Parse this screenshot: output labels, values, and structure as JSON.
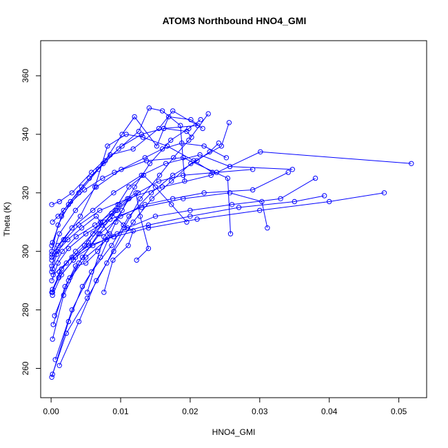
{
  "chart_data": {
    "type": "line",
    "title": "ATOM3 Northbound HNO4_GMI",
    "xlabel": "HNO4_GMI",
    "ylabel": "Theta (K)",
    "xlim": [
      -0.0015,
      0.054
    ],
    "ylim": [
      250,
      372
    ],
    "x_ticks": [
      0.0,
      0.01,
      0.02,
      0.03,
      0.04,
      0.05
    ],
    "x_tick_labels": [
      "0.00",
      "0.01",
      "0.02",
      "0.03",
      "0.04",
      "0.05"
    ],
    "y_ticks": [
      260,
      280,
      300,
      320,
      340,
      360
    ],
    "y_tick_labels": [
      "260",
      "280",
      "300",
      "320",
      "340",
      "360"
    ],
    "series_color": "#0000ff",
    "marker": "open-circle",
    "grid": false,
    "series": [
      {
        "x": [
          0.0001,
          0.0025,
          0.0045,
          0.0071,
          0.0093,
          0.012,
          0.0142,
          0.0172,
          0.0198,
          0.0215
        ],
        "y": [
          257,
          276,
          288,
          298,
          310,
          322,
          330,
          338,
          342,
          345
        ]
      },
      {
        "x": [
          0.0002,
          0.0022,
          0.0052,
          0.008,
          0.0105,
          0.0128,
          0.0156,
          0.0176,
          0.0198,
          0.0226
        ],
        "y": [
          258,
          272,
          284,
          296,
          308,
          318,
          326,
          332,
          338,
          347
        ]
      },
      {
        "x": [
          0.0012,
          0.004,
          0.0065,
          0.009,
          0.0118,
          0.0145,
          0.0173,
          0.0201,
          0.0245,
          0.0256
        ],
        "y": [
          261,
          276,
          290,
          300,
          310,
          318,
          324,
          330,
          336,
          344
        ]
      },
      {
        "x": [
          0.0006,
          0.003,
          0.0058,
          0.0087,
          0.0112,
          0.0144,
          0.0175,
          0.021,
          0.0228,
          0.0241
        ],
        "y": [
          263,
          280,
          293,
          302,
          312,
          320,
          326,
          331,
          334,
          337
        ]
      },
      {
        "x": [
          0.0002,
          0.0018,
          0.004,
          0.0068,
          0.0095,
          0.0125,
          0.0155,
          0.019,
          0.0238,
          0.029
        ],
        "y": [
          270,
          285,
          296,
          306,
          314,
          320,
          324,
          326,
          327,
          328
        ]
      },
      {
        "x": [
          0.0003,
          0.002,
          0.0045,
          0.007,
          0.01,
          0.0135,
          0.0175,
          0.022,
          0.029,
          0.0341
        ],
        "y": [
          275,
          288,
          298,
          306,
          312,
          316,
          318,
          320,
          321,
          327
        ]
      },
      {
        "x": [
          0.0005,
          0.0025,
          0.005,
          0.008,
          0.011,
          0.015,
          0.02,
          0.026,
          0.033,
          0.038
        ],
        "y": [
          278,
          290,
          298,
          304,
          308,
          312,
          314,
          316,
          318,
          325
        ]
      },
      {
        "x": [
          0.0002,
          0.0015,
          0.0035,
          0.006,
          0.0095,
          0.014,
          0.02,
          0.027,
          0.035,
          0.0393
        ],
        "y": [
          285,
          292,
          298,
          302,
          306,
          309,
          312,
          315,
          317,
          319
        ]
      },
      {
        "x": [
          0.0002,
          0.0012,
          0.003,
          0.0055,
          0.009,
          0.014,
          0.021,
          0.03,
          0.04,
          0.0479
        ],
        "y": [
          286,
          293,
          298,
          302,
          305,
          308,
          311,
          314,
          317,
          320
        ]
      },
      {
        "x": [
          0.0001,
          0.001,
          0.0025,
          0.005,
          0.0085,
          0.013,
          0.019,
          0.0257,
          0.0303,
          0.0311
        ],
        "y": [
          290,
          296,
          301,
          306,
          311,
          315,
          318,
          320,
          317,
          308
        ]
      },
      {
        "x": [
          0.0001,
          0.0008,
          0.002,
          0.004,
          0.007,
          0.011,
          0.016,
          0.023,
          0.0301,
          0.0518
        ],
        "y": [
          293,
          299,
          304,
          309,
          314,
          318,
          322,
          326,
          334,
          330
        ]
      },
      {
        "x": [
          0.0001,
          0.001,
          0.003,
          0.006,
          0.009,
          0.013,
          0.0165,
          0.0214,
          0.0257,
          0.0347
        ],
        "y": [
          295,
          302,
          308,
          314,
          320,
          326,
          330,
          333,
          329,
          328
        ]
      },
      {
        "x": [
          0.0001,
          0.0012,
          0.0035,
          0.0065,
          0.0101,
          0.0135,
          0.016,
          0.0188,
          0.022,
          0.0252
        ],
        "y": [
          298,
          306,
          314,
          322,
          328,
          332,
          335,
          337,
          336,
          332
        ]
      },
      {
        "x": [
          0.0001,
          0.001,
          0.0028,
          0.0055,
          0.0078,
          0.0102,
          0.013,
          0.0162,
          0.0195,
          0.0202
        ],
        "y": [
          300,
          309,
          317,
          325,
          331,
          336,
          340,
          342,
          341,
          339
        ]
      },
      {
        "x": [
          0.0001,
          0.0015,
          0.004,
          0.0068,
          0.0097,
          0.0126,
          0.0141,
          0.016,
          0.0186,
          0.0192
        ],
        "y": [
          302,
          312,
          320,
          328,
          335,
          341,
          349,
          348,
          343,
          324
        ]
      },
      {
        "x": [
          0.0002,
          0.0018,
          0.0044,
          0.0075,
          0.0102,
          0.012,
          0.0152,
          0.0169,
          0.0201,
          0.0218
        ],
        "y": [
          303,
          314,
          322,
          330,
          340,
          346,
          336,
          346,
          345,
          342
        ]
      },
      {
        "x": [
          0.0001,
          0.0012,
          0.003,
          0.0058,
          0.0085,
          0.0118,
          0.0155,
          0.0175,
          0.0211,
          0.0162
        ],
        "y": [
          316,
          317,
          320,
          327,
          333,
          335,
          342,
          348,
          343,
          342
        ]
      },
      {
        "x": [
          0.0002,
          0.001,
          0.0025,
          0.0048,
          0.0074,
          0.0091,
          0.0137,
          0.019,
          0.0254,
          0.0258
        ],
        "y": [
          310,
          312,
          316,
          321,
          325,
          327,
          331,
          332,
          325,
          306
        ]
      },
      {
        "x": [
          0.0001,
          0.0018,
          0.0042,
          0.0063,
          0.0081,
          0.0108,
          0.0132,
          0.0167,
          0.0205,
          0.0232
        ],
        "y": [
          299,
          304,
          312,
          322,
          336,
          340,
          339,
          336,
          331,
          327
        ]
      },
      {
        "x": [
          0.0003,
          0.0022,
          0.0048,
          0.0071,
          0.0096,
          0.0112,
          0.0133,
          0.015,
          0.0173,
          0.0195
        ],
        "y": [
          292,
          296,
          302,
          310,
          316,
          322,
          326,
          322,
          316,
          310
        ]
      },
      {
        "x": [
          0.0002,
          0.0015,
          0.0035,
          0.006,
          0.0077,
          0.0098,
          0.0122,
          0.0128,
          0.014,
          0.0123
        ],
        "y": [
          287,
          294,
          300,
          306,
          310,
          316,
          320,
          312,
          301,
          297
        ]
      },
      {
        "x": [
          0.0001,
          0.0011,
          0.0032,
          0.0054,
          0.0073,
          0.0093,
          0.0112,
          0.0102,
          0.0076,
          0.0052
        ],
        "y": [
          286,
          291,
          297,
          303,
          309,
          314,
          318,
          314,
          305,
          286
        ]
      },
      {
        "x": [
          0.0001,
          0.0009,
          0.0024,
          0.0044,
          0.0065,
          0.0084,
          0.0067,
          0.005,
          0.0035,
          0.0027
        ],
        "y": [
          297,
          300,
          304,
          308,
          312,
          306,
          300,
          296,
          295,
          291
        ]
      },
      {
        "x": [
          0.0002,
          0.0016,
          0.0036,
          0.0063,
          0.0087,
          0.0104,
          0.0118,
          0.0111,
          0.0089,
          0.0076
        ],
        "y": [
          294,
          300,
          305,
          309,
          313,
          309,
          307,
          302,
          297,
          286
        ]
      }
    ]
  }
}
